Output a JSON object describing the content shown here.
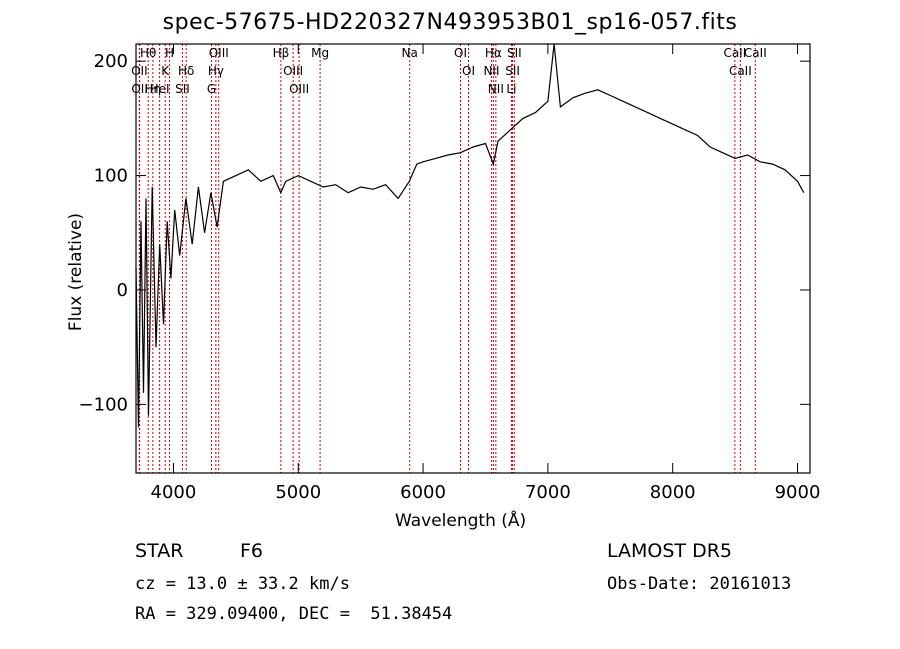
{
  "chart_data": {
    "type": "line",
    "title": "spec-57675-HD220327N493953B01_sp16-057.fits",
    "xlabel": "Wavelength (Å)",
    "ylabel": "Flux (relative)",
    "xlim": [
      3700,
      9100
    ],
    "ylim": [
      -160,
      215
    ],
    "xticks": [
      4000,
      5000,
      6000,
      7000,
      8000,
      9000
    ],
    "yticks": [
      -100,
      0,
      100,
      200
    ],
    "series": [
      {
        "x": [
          3700,
          3720,
          3740,
          3760,
          3780,
          3800,
          3830,
          3860,
          3890,
          3920,
          3950,
          3980,
          4010,
          4050,
          4100,
          4150,
          4200,
          4250,
          4300,
          4350,
          4400,
          4500,
          4600,
          4700,
          4800,
          4860,
          4900,
          5000,
          5100,
          5200,
          5300,
          5400,
          5500,
          5600,
          5700,
          5800,
          5890,
          5950,
          6000,
          6100,
          6200,
          6300,
          6400,
          6500,
          6563,
          6600,
          6700,
          6800,
          6900,
          7000,
          7050,
          7100,
          7200,
          7300,
          7400,
          7500,
          7600,
          7700,
          7800,
          7900,
          8000,
          8100,
          8200,
          8300,
          8400,
          8500,
          8600,
          8700,
          8800,
          8900,
          9000,
          9050
        ],
        "y": [
          20,
          -120,
          60,
          -90,
          80,
          -110,
          90,
          -50,
          40,
          -30,
          60,
          10,
          70,
          30,
          80,
          40,
          90,
          50,
          85,
          55,
          95,
          100,
          105,
          95,
          100,
          85,
          95,
          100,
          95,
          90,
          92,
          85,
          90,
          88,
          92,
          80,
          95,
          110,
          112,
          115,
          118,
          120,
          125,
          128,
          110,
          130,
          140,
          150,
          155,
          165,
          215,
          160,
          168,
          172,
          175,
          170,
          165,
          160,
          155,
          150,
          145,
          140,
          135,
          125,
          120,
          115,
          118,
          112,
          110,
          105,
          95,
          85
        ]
      }
    ],
    "lines": [
      {
        "name": "Hθ",
        "wavelength": 3798
      },
      {
        "name": "OII",
        "wavelength": 3727
      },
      {
        "name": "OII",
        "wavelength": 3729
      },
      {
        "name": "Hη",
        "wavelength": 3835
      },
      {
        "name": "K",
        "wavelength": 3934
      },
      {
        "name": "HeI",
        "wavelength": 3889
      },
      {
        "name": "H",
        "wavelength": 3969
      },
      {
        "name": "Hδ",
        "wavelength": 4102
      },
      {
        "name": "SII",
        "wavelength": 4072
      },
      {
        "name": "OIII",
        "wavelength": 4363
      },
      {
        "name": "Hγ",
        "wavelength": 4340
      },
      {
        "name": "G",
        "wavelength": 4305
      },
      {
        "name": "Hβ",
        "wavelength": 4861
      },
      {
        "name": "OIII",
        "wavelength": 4959
      },
      {
        "name": "OIII",
        "wavelength": 5007
      },
      {
        "name": "Mg",
        "wavelength": 5175
      },
      {
        "name": "Na",
        "wavelength": 5893
      },
      {
        "name": "OI",
        "wavelength": 6300
      },
      {
        "name": "OI",
        "wavelength": 6364
      },
      {
        "name": "Hα",
        "wavelength": 6563
      },
      {
        "name": "NII",
        "wavelength": 6548
      },
      {
        "name": "NII",
        "wavelength": 6583
      },
      {
        "name": "SII",
        "wavelength": 6717
      },
      {
        "name": "Li",
        "wavelength": 6708
      },
      {
        "name": "SII",
        "wavelength": 6731
      },
      {
        "name": "CaII",
        "wavelength": 8498
      },
      {
        "name": "CaII",
        "wavelength": 8542
      },
      {
        "name": "CaII",
        "wavelength": 8662
      }
    ]
  },
  "info": {
    "class": "STAR",
    "subclass": "F6",
    "survey": "LAMOST DR5",
    "cz": "cz = 13.0 ± 33.2 km/s",
    "obs_date": "Obs-Date: 20161013",
    "coords": "RA = 329.09400, DEC =  51.38454"
  },
  "colors": {
    "axis": "#000000",
    "spectrum": "#000000",
    "line_marker": "#cc0000"
  }
}
